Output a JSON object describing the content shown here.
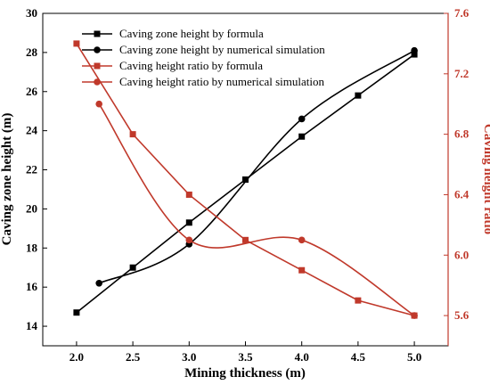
{
  "chart_data": {
    "type": "line",
    "xlabel": "Mining thickness (m)",
    "ylabel_left": "Caving zone height (m)",
    "ylabel_right": "Caving height ratio",
    "x_ticks": [
      "2.0",
      "2.5",
      "3.0",
      "3.5",
      "4.0",
      "4.5",
      "5.0"
    ],
    "y_left_ticks": [
      "14",
      "16",
      "18",
      "20",
      "22",
      "24",
      "26",
      "28",
      "30"
    ],
    "y_right_ticks": [
      "5.6",
      "6.0",
      "6.4",
      "6.8",
      "7.2",
      "7.6"
    ],
    "xlim": [
      1.7,
      5.3
    ],
    "ylim_left": [
      13,
      30
    ],
    "ylim_right": [
      5.4,
      7.6
    ],
    "legend_position": "top-left",
    "colors": {
      "left_axis": "#000000",
      "right_axis": "#c0392b"
    },
    "series": [
      {
        "name": "Caving zone height by formula",
        "axis": "left",
        "marker": "square",
        "color": "#000000",
        "x": [
          2.0,
          2.5,
          3.0,
          3.5,
          4.0,
          4.5,
          5.0
        ],
        "y": [
          14.7,
          17.0,
          19.3,
          21.5,
          23.7,
          25.8,
          27.9
        ]
      },
      {
        "name": "Caving zone height by numerical simulation",
        "axis": "left",
        "marker": "circle",
        "color": "#000000",
        "x": [
          2.2,
          3.0,
          4.0,
          5.0
        ],
        "y": [
          16.2,
          18.2,
          24.6,
          28.1
        ]
      },
      {
        "name": "Caving height ratio by formula",
        "axis": "right",
        "marker": "square",
        "color": "#c0392b",
        "x": [
          2.0,
          2.5,
          3.0,
          3.5,
          4.0,
          4.5,
          5.0
        ],
        "y": [
          7.4,
          6.8,
          6.4,
          6.1,
          5.9,
          5.7,
          5.6
        ]
      },
      {
        "name": "Caving height ratio by numerical simulation",
        "axis": "right",
        "marker": "circle",
        "color": "#c0392b",
        "x": [
          2.2,
          3.0,
          4.0,
          5.0
        ],
        "y": [
          7.0,
          6.1,
          6.1,
          5.6
        ]
      }
    ]
  }
}
